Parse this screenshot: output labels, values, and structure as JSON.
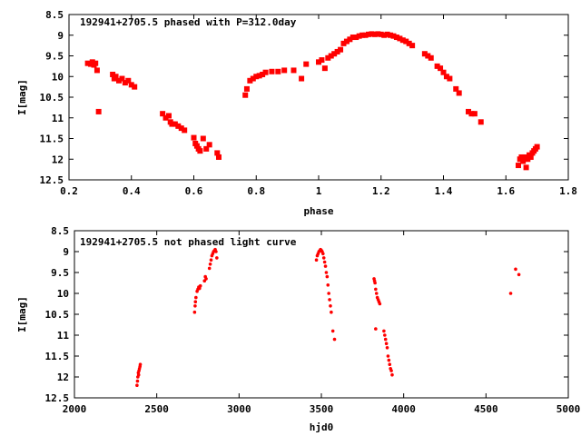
{
  "chart_data": [
    {
      "type": "scatter",
      "title": "192941+2705.5 phased with P=312.0day",
      "xlabel": "phase",
      "ylabel": "I[mag]",
      "xlim": [
        0.2,
        1.8
      ],
      "ylim": [
        12.5,
        8.5
      ],
      "y_inverted": true,
      "xticks": [
        0.2,
        0.4,
        0.6,
        0.8,
        1.0,
        1.2,
        1.4,
        1.6,
        1.8
      ],
      "xtick_labels": [
        "0.2",
        "0.4",
        "0.6",
        "0.8",
        "1",
        "1.2",
        "1.4",
        "1.6",
        "1.8"
      ],
      "yticks": [
        8.5,
        9,
        9.5,
        10,
        10.5,
        11,
        11.5,
        12,
        12.5
      ],
      "ytick_labels": [
        "8.5",
        "9",
        "9.5",
        "10",
        "10.5",
        "11",
        "11.5",
        "12",
        "12.5"
      ],
      "marker_color": "#ff0000",
      "series": [
        {
          "points": [
            [
              0.26,
              9.68
            ],
            [
              0.27,
              9.7
            ],
            [
              0.275,
              9.65
            ],
            [
              0.28,
              9.72
            ],
            [
              0.285,
              9.68
            ],
            [
              0.29,
              9.85
            ],
            [
              0.295,
              10.85
            ],
            [
              0.34,
              9.95
            ],
            [
              0.345,
              10.05
            ],
            [
              0.35,
              10.0
            ],
            [
              0.36,
              10.1
            ],
            [
              0.37,
              10.05
            ],
            [
              0.38,
              10.15
            ],
            [
              0.39,
              10.1
            ],
            [
              0.4,
              10.2
            ],
            [
              0.41,
              10.25
            ],
            [
              0.5,
              10.9
            ],
            [
              0.51,
              11.0
            ],
            [
              0.52,
              10.95
            ],
            [
              0.525,
              11.1
            ],
            [
              0.53,
              11.15
            ],
            [
              0.54,
              11.15
            ],
            [
              0.55,
              11.2
            ],
            [
              0.56,
              11.25
            ],
            [
              0.57,
              11.3
            ],
            [
              0.6,
              11.48
            ],
            [
              0.605,
              11.62
            ],
            [
              0.61,
              11.68
            ],
            [
              0.615,
              11.75
            ],
            [
              0.62,
              11.8
            ],
            [
              0.63,
              11.5
            ],
            [
              0.64,
              11.75
            ],
            [
              0.65,
              11.65
            ],
            [
              0.675,
              11.85
            ],
            [
              0.68,
              11.95
            ],
            [
              0.765,
              10.45
            ],
            [
              0.77,
              10.3
            ],
            [
              0.78,
              10.1
            ],
            [
              0.79,
              10.05
            ],
            [
              0.8,
              10.0
            ],
            [
              0.81,
              9.98
            ],
            [
              0.82,
              9.95
            ],
            [
              0.83,
              9.9
            ],
            [
              0.85,
              9.88
            ],
            [
              0.87,
              9.88
            ],
            [
              0.89,
              9.85
            ],
            [
              0.92,
              9.85
            ],
            [
              0.945,
              10.05
            ],
            [
              0.96,
              9.7
            ],
            [
              1.0,
              9.65
            ],
            [
              1.01,
              9.6
            ],
            [
              1.02,
              9.8
            ],
            [
              1.03,
              9.55
            ],
            [
              1.04,
              9.5
            ],
            [
              1.05,
              9.45
            ],
            [
              1.06,
              9.4
            ],
            [
              1.07,
              9.35
            ],
            [
              1.08,
              9.2
            ],
            [
              1.09,
              9.15
            ],
            [
              1.1,
              9.1
            ],
            [
              1.11,
              9.05
            ],
            [
              1.12,
              9.05
            ],
            [
              1.13,
              9.02
            ],
            [
              1.14,
              9.0
            ],
            [
              1.15,
              9.0
            ],
            [
              1.16,
              8.98
            ],
            [
              1.17,
              8.97
            ],
            [
              1.18,
              8.98
            ],
            [
              1.19,
              8.97
            ],
            [
              1.2,
              8.98
            ],
            [
              1.21,
              9.0
            ],
            [
              1.22,
              8.98
            ],
            [
              1.23,
              9.0
            ],
            [
              1.24,
              9.02
            ],
            [
              1.25,
              9.05
            ],
            [
              1.26,
              9.08
            ],
            [
              1.27,
              9.12
            ],
            [
              1.28,
              9.15
            ],
            [
              1.29,
              9.2
            ],
            [
              1.3,
              9.25
            ],
            [
              1.34,
              9.45
            ],
            [
              1.35,
              9.5
            ],
            [
              1.36,
              9.55
            ],
            [
              1.38,
              9.75
            ],
            [
              1.39,
              9.8
            ],
            [
              1.4,
              9.9
            ],
            [
              1.41,
              10.0
            ],
            [
              1.42,
              10.05
            ],
            [
              1.44,
              10.3
            ],
            [
              1.45,
              10.4
            ],
            [
              1.48,
              10.85
            ],
            [
              1.49,
              10.9
            ],
            [
              1.5,
              10.9
            ],
            [
              1.52,
              11.1
            ],
            [
              1.64,
              12.15
            ],
            [
              1.645,
              12.0
            ],
            [
              1.65,
              11.95
            ],
            [
              1.655,
              12.05
            ],
            [
              1.66,
              11.95
            ],
            [
              1.665,
              12.2
            ],
            [
              1.67,
              12.0
            ],
            [
              1.675,
              11.9
            ],
            [
              1.68,
              11.95
            ],
            [
              1.685,
              11.85
            ],
            [
              1.69,
              11.8
            ],
            [
              1.695,
              11.75
            ],
            [
              1.7,
              11.7
            ]
          ]
        }
      ]
    },
    {
      "type": "scatter",
      "title": "192941+2705.5 not phased light curve",
      "xlabel": "hjd0",
      "ylabel": "I[mag]",
      "xlim": [
        2000,
        5000
      ],
      "ylim": [
        12.5,
        8.5
      ],
      "y_inverted": true,
      "xticks": [
        2000,
        2500,
        3000,
        3500,
        4000,
        4500,
        5000
      ],
      "xtick_labels": [
        "2000",
        "2500",
        "3000",
        "3500",
        "4000",
        "4500",
        "5000"
      ],
      "yticks": [
        8.5,
        9,
        9.5,
        10,
        10.5,
        11,
        11.5,
        12,
        12.5
      ],
      "ytick_labels": [
        "8.5",
        "9",
        "9.5",
        "10",
        "10.5",
        "11",
        "11.5",
        "12",
        "12.5"
      ],
      "marker_color": "#ff0000",
      "series": [
        {
          "points": [
            [
              2380,
              12.2
            ],
            [
              2383,
              12.1
            ],
            [
              2385,
              12.0
            ],
            [
              2388,
              11.9
            ],
            [
              2390,
              11.95
            ],
            [
              2392,
              11.85
            ],
            [
              2395,
              11.8
            ],
            [
              2398,
              11.75
            ],
            [
              2400,
              11.7
            ],
            [
              2730,
              10.45
            ],
            [
              2733,
              10.3
            ],
            [
              2735,
              10.2
            ],
            [
              2738,
              10.1
            ],
            [
              2745,
              9.95
            ],
            [
              2750,
              9.9
            ],
            [
              2755,
              9.85
            ],
            [
              2760,
              9.88
            ],
            [
              2765,
              9.82
            ],
            [
              2790,
              9.7
            ],
            [
              2795,
              9.6
            ],
            [
              2800,
              9.65
            ],
            [
              2820,
              9.4
            ],
            [
              2825,
              9.3
            ],
            [
              2830,
              9.2
            ],
            [
              2835,
              9.1
            ],
            [
              2840,
              9.05
            ],
            [
              2845,
              9.0
            ],
            [
              2850,
              8.98
            ],
            [
              2855,
              8.95
            ],
            [
              2860,
              9.0
            ],
            [
              2865,
              9.15
            ],
            [
              3470,
              9.2
            ],
            [
              3475,
              9.1
            ],
            [
              3480,
              9.05
            ],
            [
              3485,
              9.0
            ],
            [
              3490,
              8.98
            ],
            [
              3495,
              8.95
            ],
            [
              3500,
              8.97
            ],
            [
              3505,
              9.0
            ],
            [
              3510,
              9.05
            ],
            [
              3515,
              9.15
            ],
            [
              3520,
              9.25
            ],
            [
              3525,
              9.35
            ],
            [
              3530,
              9.5
            ],
            [
              3535,
              9.6
            ],
            [
              3540,
              9.8
            ],
            [
              3545,
              10.0
            ],
            [
              3550,
              10.15
            ],
            [
              3555,
              10.3
            ],
            [
              3560,
              10.45
            ],
            [
              3570,
              10.9
            ],
            [
              3580,
              11.1
            ],
            [
              3820,
              9.65
            ],
            [
              3823,
              9.7
            ],
            [
              3826,
              9.75
            ],
            [
              3830,
              9.9
            ],
            [
              3835,
              10.0
            ],
            [
              3840,
              10.1
            ],
            [
              3845,
              10.15
            ],
            [
              3850,
              10.2
            ],
            [
              3855,
              10.25
            ],
            [
              3830,
              10.85
            ],
            [
              3880,
              10.9
            ],
            [
              3885,
              11.0
            ],
            [
              3890,
              11.1
            ],
            [
              3895,
              11.2
            ],
            [
              3900,
              11.3
            ],
            [
              3905,
              11.5
            ],
            [
              3910,
              11.6
            ],
            [
              3915,
              11.7
            ],
            [
              3920,
              11.8
            ],
            [
              3925,
              11.85
            ],
            [
              3930,
              11.95
            ],
            [
              4650,
              10.0
            ],
            [
              4680,
              9.42
            ],
            [
              4700,
              9.55
            ]
          ]
        }
      ]
    }
  ]
}
